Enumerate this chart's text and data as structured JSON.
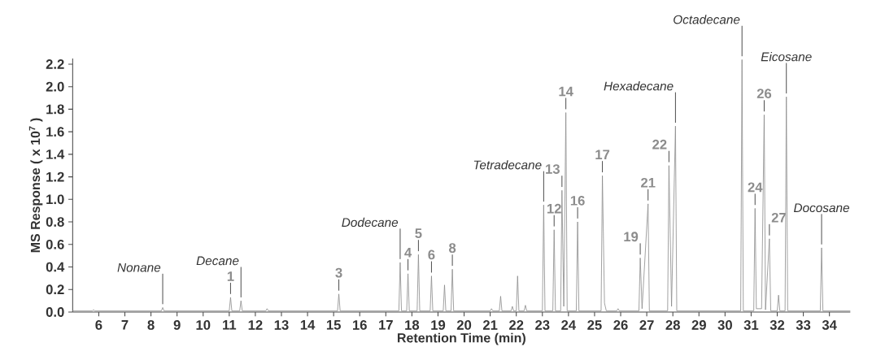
{
  "chart_data": {
    "type": "line",
    "xlabel": "Retention Time (min)",
    "ylabel": "MS Response ( x 10$^{7}$ )",
    "xlim": [
      5.0,
      34.8
    ],
    "ylim": [
      0,
      2.25
    ],
    "xticks": [
      6,
      7,
      8,
      9,
      10,
      11,
      12,
      13,
      14,
      15,
      16,
      17,
      18,
      19,
      20,
      21,
      22,
      23,
      24,
      25,
      26,
      27,
      28,
      29,
      30,
      31,
      32,
      33,
      34
    ],
    "yticks": [
      {
        "value": 0,
        "label": "0.0"
      },
      0.2,
      0.4,
      0.6,
      0.8,
      {
        "value": 1,
        "label": "1.0"
      },
      1.2,
      1.4,
      1.6,
      1.8,
      {
        "value": 2,
        "label": "2.0"
      },
      2.2
    ],
    "series": [
      {
        "color": "#8a8a8a",
        "x": [
          5.0,
          5.75,
          5.8,
          5.85,
          8.4,
          8.45,
          8.5,
          11.0,
          11.05,
          11.1,
          11.4,
          11.45,
          11.5,
          12.4,
          12.45,
          12.5,
          15.15,
          15.2,
          15.25,
          17.5,
          17.55,
          17.6,
          17.8,
          17.85,
          17.9,
          18.2,
          18.25,
          18.3,
          18.7,
          18.75,
          18.8,
          19.2,
          19.25,
          19.3,
          19.5,
          19.55,
          19.6,
          21.0,
          21.05,
          21.1,
          21.35,
          21.4,
          21.45,
          21.8,
          21.85,
          21.9,
          22.0,
          22.05,
          22.1,
          22.3,
          22.35,
          22.4,
          23.0,
          23.05,
          23.1,
          23.4,
          23.45,
          23.5,
          23.7,
          23.75,
          23.82,
          23.9,
          23.95,
          24.3,
          24.35,
          24.4,
          25.25,
          25.3,
          25.38,
          25.45,
          25.85,
          25.9,
          25.95,
          26.7,
          26.75,
          26.82,
          27.05,
          27.1,
          27.8,
          27.85,
          27.95,
          28.1,
          28.15,
          30.6,
          30.65,
          30.7,
          31.1,
          31.15,
          31.2,
          31.4,
          31.5,
          31.55,
          31.7,
          31.75,
          32.0,
          32.05,
          32.1,
          32.3,
          32.35,
          32.4,
          33.65,
          33.7,
          33.75,
          34.8
        ],
        "values": [
          0.01,
          0.01,
          0.02,
          0.01,
          0.01,
          0.04,
          0.01,
          0.01,
          0.13,
          0.01,
          0.01,
          0.1,
          0.01,
          0.01,
          0.03,
          0.01,
          0.01,
          0.16,
          0.01,
          0.01,
          0.44,
          0.01,
          0.01,
          0.34,
          0.01,
          0.01,
          0.51,
          0.01,
          0.01,
          0.32,
          0.01,
          0.01,
          0.24,
          0.01,
          0.01,
          0.38,
          0.01,
          0.01,
          0.03,
          0.01,
          0.01,
          0.14,
          0.01,
          0.01,
          0.05,
          0.01,
          0.01,
          0.32,
          0.01,
          0.01,
          0.06,
          0.01,
          0.01,
          0.95,
          0.01,
          0.01,
          0.73,
          0.01,
          0.01,
          1.08,
          0.05,
          1.77,
          0.01,
          0.01,
          0.8,
          0.01,
          0.01,
          1.21,
          0.08,
          0.01,
          0.01,
          0.03,
          0.01,
          0.01,
          0.48,
          0.03,
          0.96,
          0.01,
          0.01,
          1.3,
          0.05,
          1.65,
          0.01,
          0.01,
          2.24,
          0.01,
          0.01,
          0.92,
          0.03,
          0.03,
          1.75,
          0.02,
          0.65,
          0.01,
          0.01,
          0.15,
          0.01,
          0.01,
          1.91,
          0.01,
          0.01,
          0.57,
          0.01,
          0.01
        ]
      }
    ],
    "annotations": [
      {
        "text": "Nonane",
        "x": 8.45,
        "y": 0.04
      },
      {
        "text": "1",
        "x": 11.05,
        "y": 0.13
      },
      {
        "text": "Decane",
        "x": 11.45,
        "y": 0.1
      },
      {
        "text": "3",
        "x": 15.2,
        "y": 0.16
      },
      {
        "text": "Dodecane",
        "x": 17.55,
        "y": 0.44
      },
      {
        "text": "4",
        "x": 17.85,
        "y": 0.34
      },
      {
        "text": "5",
        "x": 18.25,
        "y": 0.51
      },
      {
        "text": "6",
        "x": 18.75,
        "y": 0.32
      },
      {
        "text": "8",
        "x": 19.55,
        "y": 0.38
      },
      {
        "text": "Tetradecane",
        "x": 23.05,
        "y": 0.95
      },
      {
        "text": "12",
        "x": 23.45,
        "y": 0.73
      },
      {
        "text": "13",
        "x": 23.75,
        "y": 1.08
      },
      {
        "text": "14",
        "x": 23.9,
        "y": 1.77
      },
      {
        "text": "16",
        "x": 24.35,
        "y": 0.8
      },
      {
        "text": "17",
        "x": 25.3,
        "y": 1.21
      },
      {
        "text": "19",
        "x": 26.75,
        "y": 0.48
      },
      {
        "text": "21",
        "x": 27.05,
        "y": 0.96
      },
      {
        "text": "22",
        "x": 27.85,
        "y": 1.3
      },
      {
        "text": "Hexadecane",
        "x": 28.1,
        "y": 1.65
      },
      {
        "text": "Octadecane",
        "x": 30.65,
        "y": 2.24
      },
      {
        "text": "24",
        "x": 31.15,
        "y": 0.92
      },
      {
        "text": "26",
        "x": 31.5,
        "y": 1.75
      },
      {
        "text": "27",
        "x": 31.7,
        "y": 0.65
      },
      {
        "text": "Eicosane",
        "x": 32.35,
        "y": 1.91
      },
      {
        "text": "Docosane",
        "x": 33.7,
        "y": 0.57
      }
    ]
  }
}
